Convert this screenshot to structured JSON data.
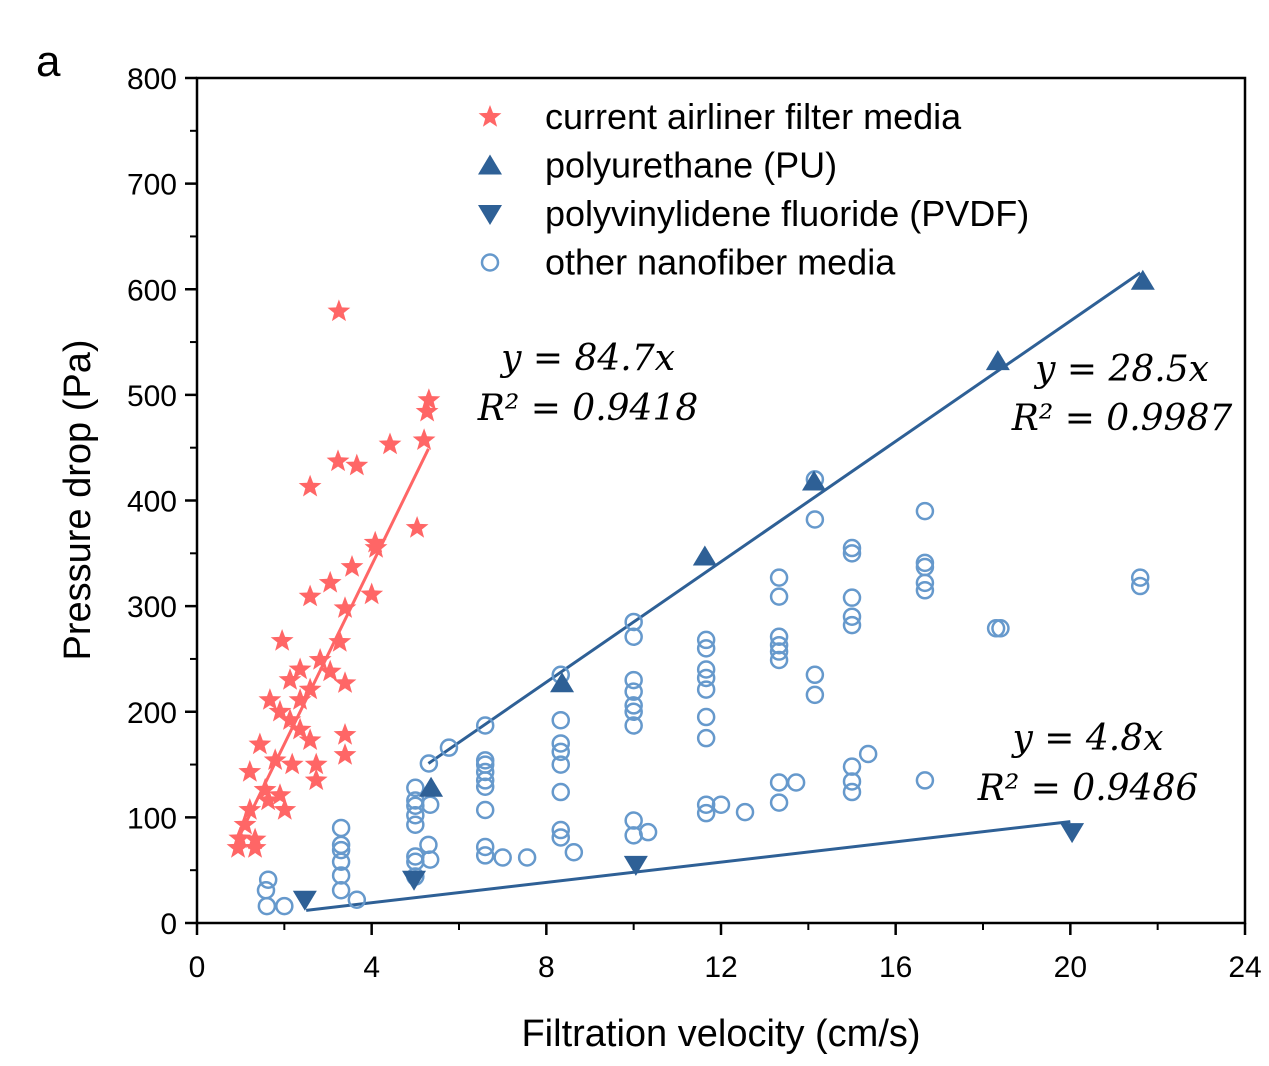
{
  "chart_data": {
    "type": "scatter",
    "panel_label": "a",
    "xlabel": "Filtration velocity (cm/s)",
    "ylabel": "Pressure drop (Pa)",
    "xlim": [
      0,
      24
    ],
    "ylim": [
      0,
      800
    ],
    "xticks": [
      0,
      4,
      8,
      12,
      16,
      20,
      24
    ],
    "yticks": [
      0,
      100,
      200,
      300,
      400,
      500,
      600,
      700,
      800
    ],
    "grid": false,
    "legend_position": "top-center",
    "colors": {
      "airliner": "#ff6666",
      "pu": "#2e6096",
      "pvdf": "#2e6096",
      "other": "#6699cc"
    },
    "series": [
      {
        "name": "current airliner filter media",
        "marker": "star",
        "color": "#ff6666",
        "points": [
          [
            3.25,
            579
          ],
          [
            5.31,
            495
          ],
          [
            5.27,
            484
          ],
          [
            5.2,
            457
          ],
          [
            4.42,
            453
          ],
          [
            3.23,
            437
          ],
          [
            3.66,
            433
          ],
          [
            2.59,
            413
          ],
          [
            5.04,
            374
          ],
          [
            4.08,
            360
          ],
          [
            4.1,
            355
          ],
          [
            3.55,
            337
          ],
          [
            3.05,
            322
          ],
          [
            2.59,
            309
          ],
          [
            4.0,
            311
          ],
          [
            3.39,
            298
          ],
          [
            1.95,
            267
          ],
          [
            3.27,
            266
          ],
          [
            2.36,
            240
          ],
          [
            2.82,
            249
          ],
          [
            3.05,
            238
          ],
          [
            2.13,
            230
          ],
          [
            3.39,
            227
          ],
          [
            2.59,
            221
          ],
          [
            1.67,
            211
          ],
          [
            2.36,
            211
          ],
          [
            1.9,
            200
          ],
          [
            2.13,
            192
          ],
          [
            2.36,
            183
          ],
          [
            3.39,
            178
          ],
          [
            3.39,
            159
          ],
          [
            2.59,
            173
          ],
          [
            2.73,
            150
          ],
          [
            2.18,
            150
          ],
          [
            2.73,
            135
          ],
          [
            1.44,
            169
          ],
          [
            1.21,
            143
          ],
          [
            1.79,
            154
          ],
          [
            1.56,
            126
          ],
          [
            1.9,
            121
          ],
          [
            1.63,
            116
          ],
          [
            2.01,
            107
          ],
          [
            1.21,
            107
          ],
          [
            1.1,
            93
          ],
          [
            0.98,
            80
          ],
          [
            1.33,
            79
          ],
          [
            0.94,
            71
          ],
          [
            1.33,
            71
          ]
        ]
      },
      {
        "name": "polyurethane (PU)",
        "marker": "triangle-up",
        "color": "#2e6096",
        "points": [
          [
            5.36,
            128
          ],
          [
            8.36,
            227
          ],
          [
            11.63,
            347
          ],
          [
            14.13,
            418
          ],
          [
            18.34,
            532
          ],
          [
            21.66,
            608
          ]
        ]
      },
      {
        "name": "polyvinylidene fluoride (PVDF)",
        "marker": "triangle-down",
        "color": "#2e6096",
        "points": [
          [
            2.47,
            22
          ],
          [
            4.97,
            41
          ],
          [
            10.05,
            55
          ],
          [
            20.04,
            86
          ]
        ]
      },
      {
        "name": "other nanofiber media",
        "marker": "circle-open",
        "color": "#6699cc",
        "points": [
          [
            1.63,
            41
          ],
          [
            1.58,
            31
          ],
          [
            1.6,
            16
          ],
          [
            2.0,
            16
          ],
          [
            3.3,
            90
          ],
          [
            3.3,
            74
          ],
          [
            3.3,
            69
          ],
          [
            3.3,
            58
          ],
          [
            3.3,
            45
          ],
          [
            3.3,
            31
          ],
          [
            3.66,
            22
          ],
          [
            5.0,
            128
          ],
          [
            5.0,
            116
          ],
          [
            5.0,
            111
          ],
          [
            5.0,
            102
          ],
          [
            5.0,
            93
          ],
          [
            5.0,
            63
          ],
          [
            5.0,
            58
          ],
          [
            5.0,
            44
          ],
          [
            5.34,
            112
          ],
          [
            5.3,
            74
          ],
          [
            5.34,
            60
          ],
          [
            5.31,
            151
          ],
          [
            5.77,
            166
          ],
          [
            6.6,
            187
          ],
          [
            6.6,
            154
          ],
          [
            6.6,
            150
          ],
          [
            6.6,
            143
          ],
          [
            6.6,
            135
          ],
          [
            6.6,
            129
          ],
          [
            6.6,
            107
          ],
          [
            6.6,
            72
          ],
          [
            6.6,
            64
          ],
          [
            7.0,
            62
          ],
          [
            7.56,
            62
          ],
          [
            8.33,
            235
          ],
          [
            8.33,
            192
          ],
          [
            8.33,
            170
          ],
          [
            8.33,
            162
          ],
          [
            8.33,
            150
          ],
          [
            8.33,
            124
          ],
          [
            8.33,
            88
          ],
          [
            8.33,
            81
          ],
          [
            8.63,
            67
          ],
          [
            10.0,
            285
          ],
          [
            10.0,
            271
          ],
          [
            10.0,
            230
          ],
          [
            10.0,
            219
          ],
          [
            10.0,
            206
          ],
          [
            10.0,
            200
          ],
          [
            10.0,
            187
          ],
          [
            10.0,
            97
          ],
          [
            10.0,
            83
          ],
          [
            10.33,
            86
          ],
          [
            11.66,
            268
          ],
          [
            11.66,
            260
          ],
          [
            11.66,
            240
          ],
          [
            11.66,
            232
          ],
          [
            11.66,
            221
          ],
          [
            11.66,
            195
          ],
          [
            11.66,
            175
          ],
          [
            11.66,
            112
          ],
          [
            11.66,
            104
          ],
          [
            12.0,
            112
          ],
          [
            12.55,
            105
          ],
          [
            13.33,
            327
          ],
          [
            13.33,
            309
          ],
          [
            13.33,
            271
          ],
          [
            13.33,
            263
          ],
          [
            13.33,
            257
          ],
          [
            13.33,
            249
          ],
          [
            13.33,
            133
          ],
          [
            13.33,
            114
          ],
          [
            13.72,
            133
          ],
          [
            14.15,
            420
          ],
          [
            14.15,
            382
          ],
          [
            14.15,
            235
          ],
          [
            14.15,
            216
          ],
          [
            15.0,
            355
          ],
          [
            15.0,
            350
          ],
          [
            15.0,
            308
          ],
          [
            15.0,
            290
          ],
          [
            15.0,
            282
          ],
          [
            15.0,
            148
          ],
          [
            15.0,
            134
          ],
          [
            15.0,
            124
          ],
          [
            15.37,
            160
          ],
          [
            16.67,
            390
          ],
          [
            16.67,
            341
          ],
          [
            16.67,
            337
          ],
          [
            16.67,
            322
          ],
          [
            16.67,
            315
          ],
          [
            16.67,
            135
          ],
          [
            18.3,
            279
          ],
          [
            18.4,
            279
          ],
          [
            21.6,
            327
          ],
          [
            21.6,
            319
          ]
        ]
      }
    ],
    "fits": [
      {
        "series": "current airliner filter media",
        "slope": 84.7,
        "x_range": [
          0.9,
          5.3
        ],
        "color": "#ff6666",
        "equation": "y = 84.7x",
        "r2_label": "R² = 0.9418"
      },
      {
        "series": "polyurethane (PU)",
        "slope": 28.5,
        "x_range": [
          5.3,
          21.6
        ],
        "color": "#2e6096",
        "equation": "y = 28.5x",
        "r2_label": "R² = 0.9987"
      },
      {
        "series": "polyvinylidene fluoride (PVDF)",
        "slope": 4.8,
        "x_range": [
          2.5,
          20
        ],
        "color": "#2e6096",
        "equation": "y = 4.8x",
        "r2_label": "R² = 0.9486"
      }
    ]
  }
}
